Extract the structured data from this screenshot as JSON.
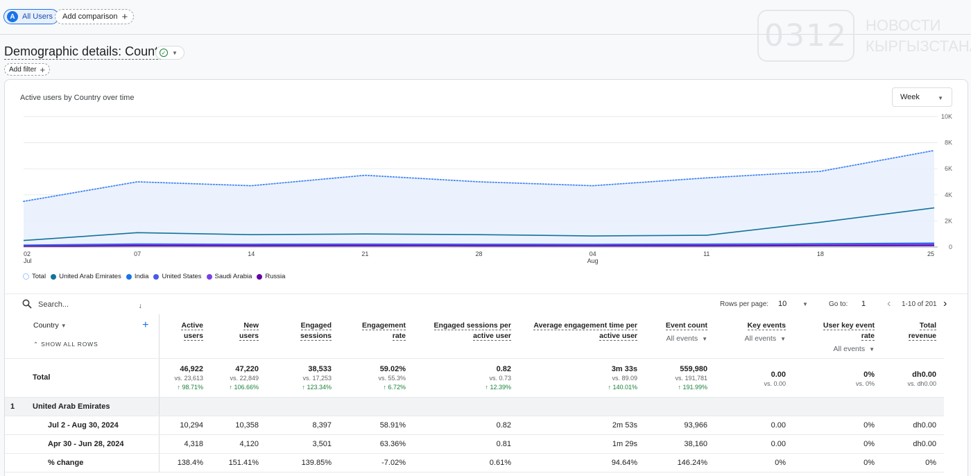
{
  "topbar": {
    "segment_badge": "A",
    "segment_label": "All Users",
    "comparison_label": "Add comparison"
  },
  "watermark": {
    "number": "0312",
    "line1": "НОВОСТИ",
    "line2": "КЫРГЫЗСТАНА"
  },
  "page": {
    "title": "Demographic details: Country",
    "add_filter": "Add filter"
  },
  "chart_card": {
    "title": "Active users by Country over time",
    "granularity": "Week"
  },
  "chart_data": {
    "type": "line",
    "x": [
      "Jul 2",
      "Jul 7",
      "Jul 14",
      "Jul 21",
      "Jul 28",
      "Aug 4",
      "Aug 11",
      "Aug 18",
      "Aug 25"
    ],
    "xtick_labels": [
      [
        "02",
        "Jul"
      ],
      [
        "07",
        ""
      ],
      [
        "14",
        ""
      ],
      [
        "21",
        ""
      ],
      [
        "28",
        ""
      ],
      [
        "04",
        "Aug"
      ],
      [
        "11",
        ""
      ],
      [
        "18",
        ""
      ],
      [
        "25",
        ""
      ]
    ],
    "ytick_labels": [
      "0",
      "2K",
      "4K",
      "6K",
      "8K",
      "10K"
    ],
    "ylim": [
      0,
      10000
    ],
    "grid": true,
    "legend_position": "bottom-left",
    "series": [
      {
        "name": "Total",
        "color": "#4285f4",
        "style": "dotted-area",
        "values": [
          3500,
          5000,
          4700,
          5500,
          5000,
          4700,
          5300,
          5800,
          7400
        ]
      },
      {
        "name": "United Arab Emirates",
        "color": "#12739a",
        "values": [
          500,
          1100,
          950,
          1000,
          950,
          850,
          900,
          1900,
          3000
        ]
      },
      {
        "name": "India",
        "color": "#1a73e8",
        "values": [
          150,
          240,
          220,
          230,
          220,
          210,
          230,
          260,
          300
        ]
      },
      {
        "name": "United States",
        "color": "#4a5ae8",
        "values": [
          100,
          180,
          170,
          180,
          170,
          160,
          170,
          200,
          240
        ]
      },
      {
        "name": "Saudi Arabia",
        "color": "#7b3ee6",
        "values": [
          80,
          140,
          130,
          140,
          130,
          120,
          130,
          150,
          170
        ]
      },
      {
        "name": "Russia",
        "color": "#6200a8",
        "values": [
          50,
          90,
          85,
          90,
          85,
          80,
          85,
          100,
          110
        ]
      }
    ]
  },
  "toolbar": {
    "search_placeholder": "Search...",
    "rows_per_page_label": "Rows per page:",
    "rows_per_page_value": "10",
    "goto_label": "Go to:",
    "goto_value": "1",
    "range_label": "1-10 of 201"
  },
  "table": {
    "dimension_header": "Country",
    "show_all_rows": "SHOW ALL ROWS",
    "columns": [
      {
        "label": "Active users",
        "l1": "Active",
        "l2": "users"
      },
      {
        "label": "New users",
        "l1": "New",
        "l2": "users"
      },
      {
        "label": "Engaged sessions",
        "l1": "Engaged",
        "l2": "sessions"
      },
      {
        "label": "Engagement rate",
        "l1": "Engagement",
        "l2": "rate"
      },
      {
        "label": "Engaged sessions per active user",
        "l1": "Engaged sessions per",
        "l2": "active user"
      },
      {
        "label": "Average engagement time per active user",
        "l1": "Average engagement time per",
        "l2": "active user"
      },
      {
        "label": "Event count",
        "l1": "Event count",
        "l2": "",
        "sub": "All events"
      },
      {
        "label": "Key events",
        "l1": "Key events",
        "l2": "",
        "sub": "All events"
      },
      {
        "label": "User key event rate",
        "l1": "User key event",
        "l2": "rate",
        "sub": "All events"
      },
      {
        "label": "Total revenue",
        "l1": "Total",
        "l2": "revenue"
      }
    ],
    "total": {
      "label": "Total",
      "values": [
        "46,922",
        "47,220",
        "38,533",
        "59.02%",
        "0.82",
        "3m 33s",
        "559,980",
        "0.00",
        "0%",
        "dh0.00"
      ],
      "vs": [
        "vs. 23,613",
        "vs. 22,849",
        "vs. 17,253",
        "vs. 55.3%",
        "vs. 0.73",
        "vs. 89.09",
        "vs. 191,781",
        "vs. 0.00",
        "vs. 0%",
        "vs. dh0.00"
      ],
      "change": [
        "↑ 98.71%",
        "↑ 106.66%",
        "↑ 123.34%",
        "↑ 6.72%",
        "↑ 12.39%",
        "↑ 140.01%",
        "↑ 191.99%",
        "",
        "",
        ""
      ]
    },
    "group": {
      "index": "1",
      "label": "United Arab Emirates"
    },
    "rows": [
      {
        "label": "Jul 2 - Aug 30, 2024",
        "values": [
          "10,294",
          "10,358",
          "8,397",
          "58.91%",
          "0.82",
          "2m 53s",
          "93,966",
          "0.00",
          "0%",
          "dh0.00"
        ]
      },
      {
        "label": "Apr 30 - Jun 28, 2024",
        "values": [
          "4,318",
          "4,120",
          "3,501",
          "63.36%",
          "0.81",
          "1m 29s",
          "38,160",
          "0.00",
          "0%",
          "dh0.00"
        ]
      },
      {
        "label": "% change",
        "values": [
          "138.4%",
          "151.41%",
          "139.85%",
          "-7.02%",
          "0.61%",
          "94.64%",
          "146.24%",
          "0%",
          "0%",
          "0%"
        ]
      }
    ]
  }
}
